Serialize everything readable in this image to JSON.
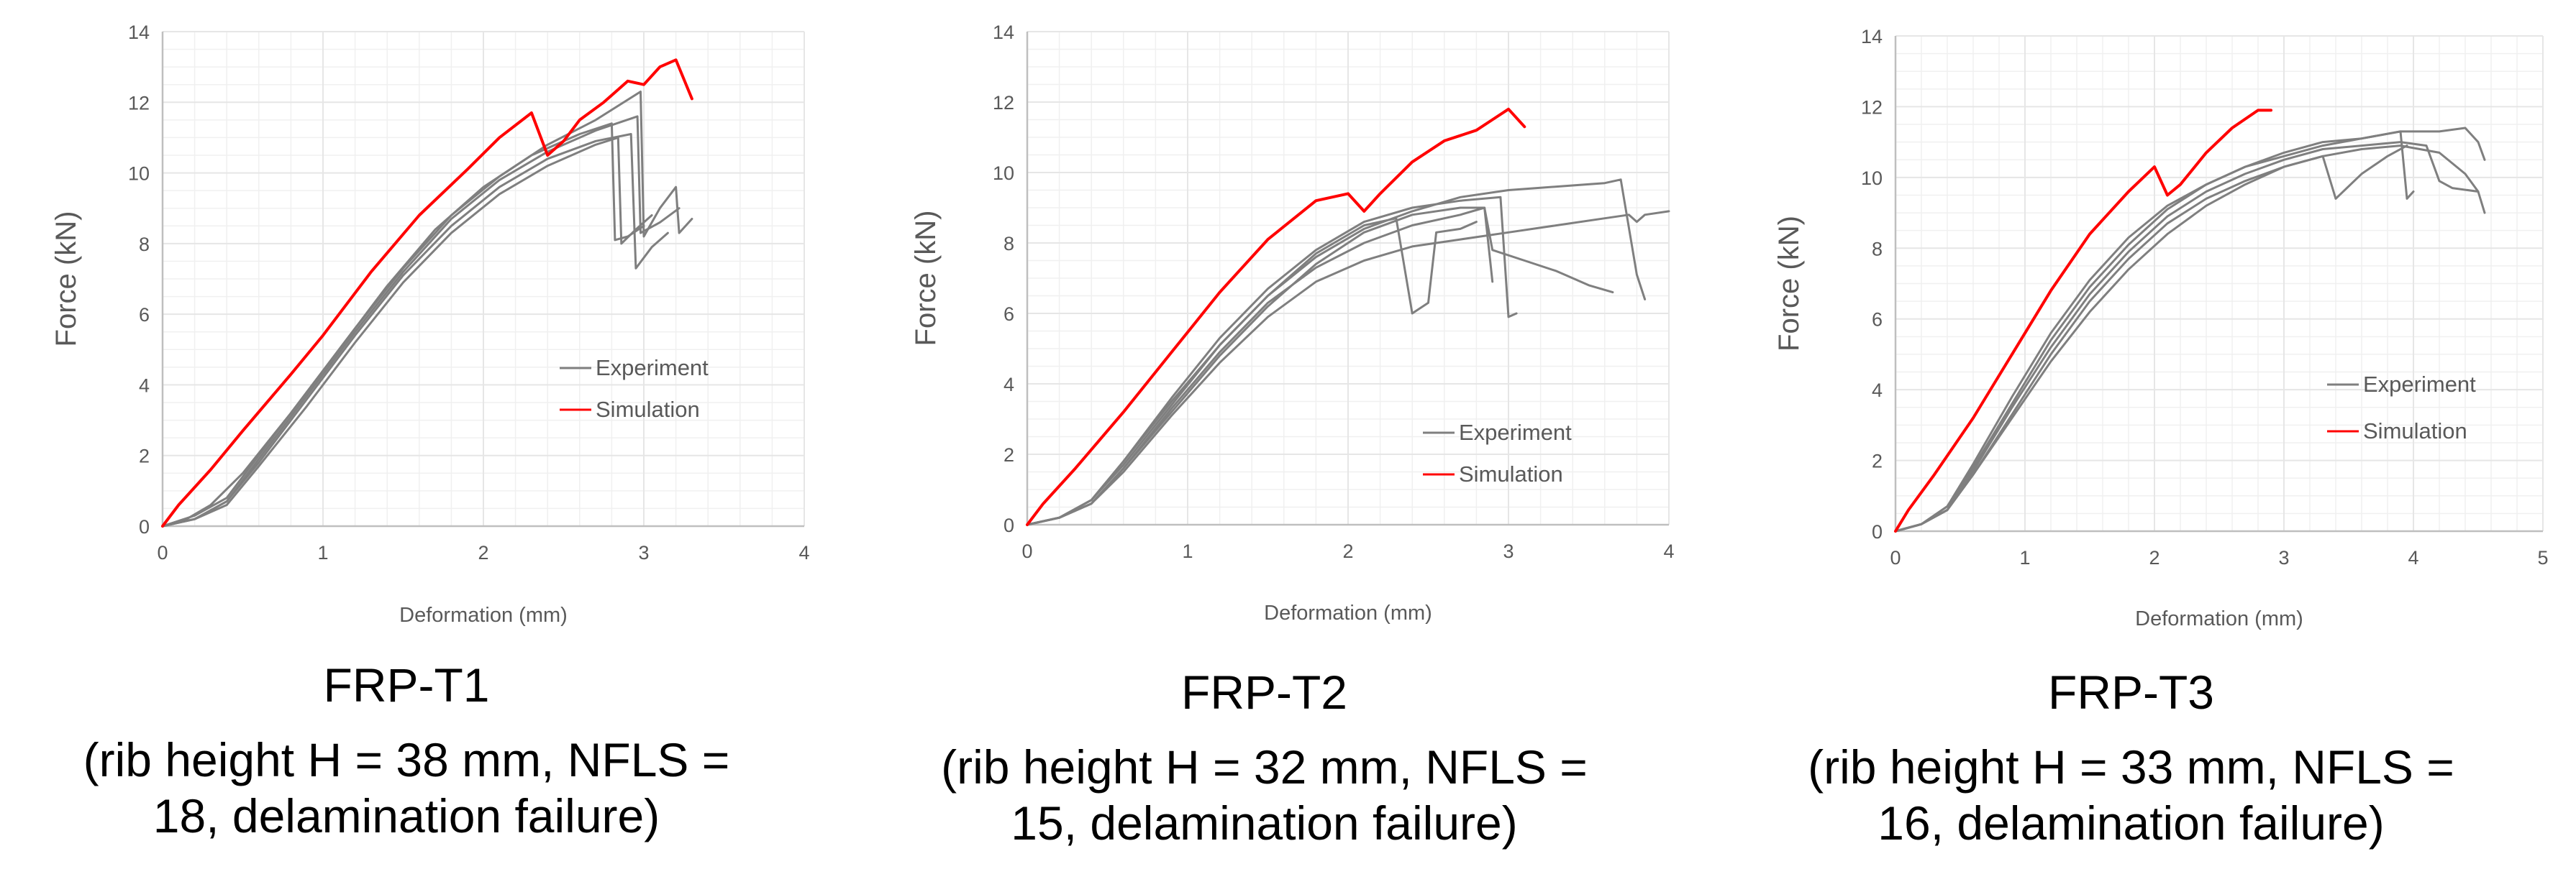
{
  "colors": {
    "experiment": "#7f7f7f",
    "simulation": "#ff0000",
    "grid": "#e6e6e6",
    "axis": "#bfbfbf"
  },
  "chart_data": [
    {
      "type": "line",
      "caption": {
        "name": "FRP-T1",
        "line1": "(rib height H = 38 mm, NFLS =",
        "line2": "18, delamination failure)"
      },
      "xlabel": "Deformation (mm)",
      "ylabel": "Force (kN)",
      "xlim": [
        0,
        4
      ],
      "ylim": [
        0,
        14
      ],
      "xticks": [
        "0",
        "1",
        "2",
        "3",
        "4"
      ],
      "yticks": [
        "0",
        "2",
        "4",
        "6",
        "8",
        "10",
        "12",
        "14"
      ],
      "legend": {
        "experiment": "Experiment",
        "simulation": "Simulation",
        "position": "right-middle"
      },
      "series": [
        {
          "name": "Simulation",
          "kind": "sim",
          "x": [
            0,
            0.1,
            0.3,
            0.5,
            0.8,
            1.0,
            1.3,
            1.6,
            1.9,
            2.1,
            2.3,
            2.4,
            2.5,
            2.6,
            2.75,
            2.9,
            3.0,
            3.1,
            3.2,
            3.3
          ],
          "y": [
            0,
            0.6,
            1.6,
            2.7,
            4.3,
            5.4,
            7.2,
            8.8,
            10.1,
            11.0,
            11.7,
            10.5,
            10.9,
            11.5,
            12.0,
            12.6,
            12.5,
            13.0,
            13.2,
            12.1
          ]
        },
        {
          "name": "Experiment",
          "kind": "exp",
          "x": [
            0,
            0.15,
            0.3,
            0.5,
            0.8,
            1.1,
            1.4,
            1.7,
            2.0,
            2.3,
            2.6,
            2.8,
            2.82,
            2.9,
            3.0
          ],
          "y": [
            0,
            0.2,
            0.6,
            1.5,
            3.2,
            5.0,
            6.8,
            8.4,
            9.6,
            10.5,
            11.1,
            11.4,
            8.1,
            8.2,
            8.5
          ]
        },
        {
          "name": "Experiment",
          "kind": "exp",
          "x": [
            0,
            0.2,
            0.4,
            0.6,
            0.9,
            1.2,
            1.5,
            1.8,
            2.1,
            2.4,
            2.7,
            2.92,
            2.95,
            3.05,
            3.15
          ],
          "y": [
            0,
            0.2,
            0.7,
            1.8,
            3.6,
            5.4,
            7.1,
            8.5,
            9.6,
            10.4,
            10.9,
            11.1,
            7.3,
            7.9,
            8.3
          ]
        },
        {
          "name": "Experiment",
          "kind": "exp",
          "x": [
            0,
            0.2,
            0.4,
            0.6,
            0.9,
            1.2,
            1.5,
            1.8,
            2.1,
            2.4,
            2.7,
            2.98,
            3.0,
            3.1,
            3.2,
            3.22,
            3.3
          ],
          "y": [
            0,
            0.3,
            0.8,
            2.0,
            3.8,
            5.6,
            7.3,
            8.8,
            9.9,
            10.8,
            11.5,
            12.3,
            8.2,
            9.0,
            9.6,
            8.3,
            8.7
          ]
        },
        {
          "name": "Experiment",
          "kind": "exp",
          "x": [
            0,
            0.2,
            0.4,
            0.6,
            0.9,
            1.2,
            1.5,
            1.8,
            2.1,
            2.4,
            2.7,
            2.84,
            2.86,
            2.95,
            3.05
          ],
          "y": [
            0,
            0.2,
            0.6,
            1.7,
            3.4,
            5.2,
            6.9,
            8.3,
            9.4,
            10.2,
            10.8,
            11.0,
            8.0,
            8.4,
            8.8
          ]
        },
        {
          "name": "Experiment",
          "kind": "exp",
          "x": [
            0,
            0.2,
            0.4,
            0.6,
            0.9,
            1.2,
            1.5,
            1.8,
            2.1,
            2.4,
            2.7,
            2.96,
            2.98,
            3.1,
            3.22
          ],
          "y": [
            0,
            0.2,
            0.7,
            1.9,
            3.7,
            5.5,
            7.2,
            8.7,
            9.8,
            10.6,
            11.2,
            11.6,
            8.3,
            8.6,
            9.0
          ]
        }
      ]
    },
    {
      "type": "line",
      "caption": {
        "name": "FRP-T2",
        "line1": "(rib height H = 32 mm, NFLS =",
        "line2": "15, delamination failure)"
      },
      "xlabel": "Deformation (mm)",
      "ylabel": "Force (kN)",
      "xlim": [
        0,
        4
      ],
      "ylim": [
        0,
        14
      ],
      "xticks": [
        "0",
        "1",
        "2",
        "3",
        "4"
      ],
      "yticks": [
        "0",
        "2",
        "4",
        "6",
        "8",
        "10",
        "12",
        "14"
      ],
      "legend": {
        "experiment": "Experiment",
        "simulation": "Simulation",
        "position": "bottom-right"
      },
      "series": [
        {
          "name": "Simulation",
          "kind": "sim",
          "x": [
            0,
            0.1,
            0.3,
            0.6,
            0.9,
            1.2,
            1.5,
            1.8,
            2.0,
            2.1,
            2.2,
            2.4,
            2.6,
            2.8,
            2.9,
            3.0,
            3.1
          ],
          "y": [
            0,
            0.6,
            1.6,
            3.2,
            4.9,
            6.6,
            8.1,
            9.2,
            9.4,
            8.9,
            9.4,
            10.3,
            10.9,
            11.2,
            11.5,
            11.8,
            11.3
          ]
        },
        {
          "name": "Experiment",
          "kind": "exp",
          "x": [
            0,
            0.2,
            0.4,
            0.6,
            0.9,
            1.2,
            1.5,
            1.8,
            2.1,
            2.3,
            2.4,
            2.5,
            2.55,
            2.7,
            2.8
          ],
          "y": [
            0,
            0.2,
            0.7,
            1.8,
            3.5,
            5.1,
            6.5,
            7.7,
            8.5,
            8.7,
            6.0,
            6.3,
            8.3,
            8.4,
            8.6
          ]
        },
        {
          "name": "Experiment",
          "kind": "exp",
          "x": [
            0,
            0.2,
            0.4,
            0.6,
            0.9,
            1.2,
            1.5,
            1.8,
            2.1,
            2.4,
            2.7,
            2.85,
            2.9
          ],
          "y": [
            0,
            0.2,
            0.6,
            1.6,
            3.2,
            4.8,
            6.2,
            7.4,
            8.3,
            8.8,
            9.0,
            9.0,
            6.9
          ]
        },
        {
          "name": "Experiment",
          "kind": "exp",
          "x": [
            0,
            0.2,
            0.4,
            0.6,
            0.9,
            1.2,
            1.5,
            1.8,
            2.1,
            2.4,
            2.7,
            2.95,
            3.0,
            3.05
          ],
          "y": [
            0,
            0.2,
            0.7,
            1.8,
            3.6,
            5.3,
            6.7,
            7.8,
            8.6,
            9.0,
            9.2,
            9.3,
            5.9,
            6.0
          ]
        },
        {
          "name": "Experiment",
          "kind": "exp",
          "x": [
            0,
            0.2,
            0.4,
            0.6,
            0.9,
            1.2,
            1.5,
            1.8,
            2.1,
            2.4,
            2.7,
            3.0,
            3.3,
            3.6,
            3.7,
            3.8,
            3.85
          ],
          "y": [
            0,
            0.2,
            0.7,
            1.7,
            3.4,
            5.1,
            6.5,
            7.6,
            8.4,
            8.9,
            9.3,
            9.5,
            9.6,
            9.7,
            9.8,
            7.1,
            6.4
          ]
        },
        {
          "name": "Experiment",
          "kind": "exp",
          "x": [
            0,
            0.2,
            0.4,
            0.6,
            0.9,
            1.2,
            1.5,
            1.8,
            2.1,
            2.4,
            2.7,
            3.0,
            3.3,
            3.6,
            3.75,
            3.8,
            3.85,
            4.0
          ],
          "y": [
            0,
            0.2,
            0.6,
            1.5,
            3.1,
            4.6,
            5.9,
            6.9,
            7.5,
            7.9,
            8.1,
            8.3,
            8.5,
            8.7,
            8.8,
            8.6,
            8.8,
            8.9
          ]
        },
        {
          "name": "Experiment",
          "kind": "exp",
          "x": [
            0,
            0.2,
            0.4,
            0.6,
            0.9,
            1.2,
            1.5,
            1.8,
            2.1,
            2.4,
            2.7,
            2.85,
            2.9,
            3.1,
            3.3,
            3.5,
            3.65
          ],
          "y": [
            0,
            0.2,
            0.6,
            1.6,
            3.3,
            4.9,
            6.3,
            7.3,
            8.0,
            8.5,
            8.8,
            9.0,
            7.8,
            7.5,
            7.2,
            6.8,
            6.6
          ]
        }
      ]
    },
    {
      "type": "line",
      "caption": {
        "name": "FRP-T3",
        "line1": "(rib height H = 33 mm, NFLS =",
        "line2": "16, delamination failure)"
      },
      "xlabel": "Deformation (mm)",
      "ylabel": "Force (kN)",
      "xlim": [
        0,
        5
      ],
      "ylim": [
        0,
        14
      ],
      "xticks": [
        "0",
        "1",
        "2",
        "3",
        "4",
        "5"
      ],
      "yticks": [
        "0",
        "2",
        "4",
        "6",
        "8",
        "10",
        "12",
        "14"
      ],
      "legend": {
        "experiment": "Experiment",
        "simulation": "Simulation",
        "position": "right-middle"
      },
      "series": [
        {
          "name": "Simulation",
          "kind": "sim",
          "x": [
            0,
            0.1,
            0.3,
            0.6,
            0.9,
            1.2,
            1.5,
            1.8,
            2.0,
            2.1,
            2.2,
            2.4,
            2.6,
            2.8,
            2.9
          ],
          "y": [
            0,
            0.6,
            1.6,
            3.2,
            5.0,
            6.8,
            8.4,
            9.6,
            10.3,
            9.5,
            9.8,
            10.7,
            11.4,
            11.9,
            11.9
          ]
        },
        {
          "name": "Experiment",
          "kind": "exp",
          "x": [
            0,
            0.2,
            0.4,
            0.6,
            0.9,
            1.2,
            1.5,
            1.8,
            2.1,
            2.4,
            2.7,
            3.0,
            3.3,
            3.4,
            3.6,
            3.8,
            3.95
          ],
          "y": [
            0,
            0.2,
            0.6,
            1.6,
            3.2,
            4.8,
            6.2,
            7.4,
            8.4,
            9.2,
            9.8,
            10.3,
            10.6,
            9.4,
            10.1,
            10.6,
            10.9
          ]
        },
        {
          "name": "Experiment",
          "kind": "exp",
          "x": [
            0,
            0.2,
            0.4,
            0.6,
            0.9,
            1.2,
            1.5,
            1.8,
            2.1,
            2.4,
            2.7,
            3.0,
            3.3,
            3.6,
            3.9,
            4.2,
            4.4,
            4.5,
            4.55
          ],
          "y": [
            0,
            0.2,
            0.7,
            1.8,
            3.6,
            5.4,
            6.9,
            8.1,
            9.1,
            9.8,
            10.3,
            10.7,
            11.0,
            11.1,
            11.3,
            11.3,
            11.4,
            11.0,
            10.5
          ]
        },
        {
          "name": "Experiment",
          "kind": "exp",
          "x": [
            0,
            0.2,
            0.4,
            0.6,
            0.9,
            1.2,
            1.5,
            1.8,
            2.1,
            2.4,
            2.7,
            3.0,
            3.3,
            3.6,
            3.9,
            4.2,
            4.4,
            4.5,
            4.55
          ],
          "y": [
            0,
            0.2,
            0.6,
            1.6,
            3.3,
            5.0,
            6.5,
            7.7,
            8.7,
            9.4,
            9.9,
            10.3,
            10.6,
            10.8,
            10.9,
            10.7,
            10.1,
            9.6,
            9.0
          ]
        },
        {
          "name": "Experiment",
          "kind": "exp",
          "x": [
            0,
            0.2,
            0.4,
            0.6,
            0.9,
            1.2,
            1.5,
            1.8,
            2.1,
            2.4,
            2.7,
            3.0,
            3.3,
            3.6,
            3.9,
            3.95,
            4.0
          ],
          "y": [
            0,
            0.2,
            0.7,
            1.9,
            3.8,
            5.6,
            7.1,
            8.3,
            9.2,
            9.8,
            10.3,
            10.6,
            10.9,
            11.1,
            11.3,
            9.4,
            9.6
          ]
        },
        {
          "name": "Experiment",
          "kind": "exp",
          "x": [
            0,
            0.2,
            0.4,
            0.6,
            0.9,
            1.2,
            1.5,
            1.8,
            2.1,
            2.4,
            2.7,
            3.0,
            3.3,
            3.6,
            3.9,
            4.1,
            4.2,
            4.3,
            4.5
          ],
          "y": [
            0,
            0.2,
            0.6,
            1.7,
            3.5,
            5.2,
            6.7,
            7.9,
            8.9,
            9.6,
            10.1,
            10.5,
            10.8,
            10.9,
            11.0,
            10.9,
            9.9,
            9.7,
            9.6
          ]
        }
      ]
    }
  ]
}
